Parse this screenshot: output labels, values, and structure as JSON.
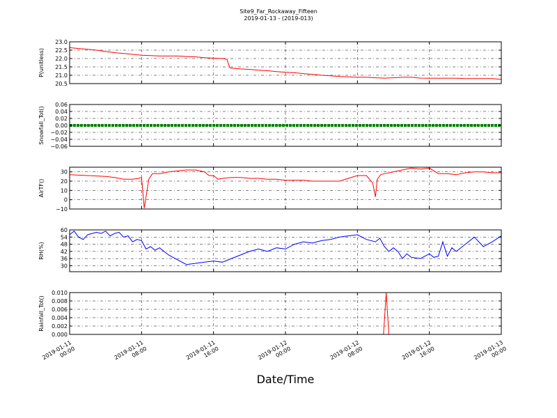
{
  "title": "Site9_Far_Rockaway_Fifteen",
  "subtitle": "2019-01-13 - (2019-013)",
  "xlabel": "Date/Time",
  "x_ticks": [
    {
      "line1": "2019-01-11",
      "line2": "00:00"
    },
    {
      "line1": "2019-01-11",
      "line2": "08:00"
    },
    {
      "line1": "2019-01-11",
      "line2": "16:00"
    },
    {
      "line1": "2019-01-12",
      "line2": "00:00"
    },
    {
      "line1": "2019-01-12",
      "line2": "08:00"
    },
    {
      "line1": "2019-01-12",
      "line2": "16:00"
    },
    {
      "line1": "2019-01-13",
      "line2": "00:00"
    }
  ],
  "x_range_hours": [
    0,
    48
  ],
  "chart_data": [
    {
      "type": "line",
      "ylabel": "P(unitless)",
      "ylim": [
        20.5,
        23.0
      ],
      "yticks": [
        "20.5",
        "21.0",
        "21.5",
        "22.0",
        "22.5",
        "23.0"
      ],
      "tick_values": [
        20.5,
        21.0,
        21.5,
        22.0,
        22.5,
        23.0
      ],
      "grid": true,
      "color": "#ff0000",
      "x_hours": [
        0,
        1,
        2,
        3,
        4,
        5,
        6,
        7,
        8,
        9,
        10,
        11,
        12,
        13,
        14,
        15,
        16,
        17,
        17.5,
        17.8,
        18,
        19,
        20,
        21,
        22,
        23,
        24,
        25,
        26,
        27,
        28,
        29,
        30,
        31,
        32,
        33,
        34,
        35,
        36,
        37,
        38,
        39,
        40,
        41,
        42,
        43,
        44,
        45,
        46,
        47,
        48
      ],
      "values": [
        22.65,
        22.6,
        22.55,
        22.5,
        22.42,
        22.35,
        22.3,
        22.25,
        22.2,
        22.18,
        22.15,
        22.15,
        22.15,
        22.12,
        22.1,
        22.05,
        22.02,
        22.0,
        21.95,
        21.45,
        21.42,
        21.38,
        21.35,
        21.3,
        21.27,
        21.22,
        21.18,
        21.15,
        21.1,
        21.05,
        21.0,
        20.97,
        20.93,
        20.9,
        20.88,
        20.88,
        20.85,
        20.83,
        20.85,
        20.88,
        20.88,
        20.83,
        20.82,
        20.82,
        20.82,
        20.82,
        20.8,
        20.8,
        20.8,
        20.8,
        20.75
      ]
    },
    {
      "type": "line",
      "ylabel": "Snowfall_Tot()",
      "ylim": [
        -0.06,
        0.06
      ],
      "yticks": [
        "−0.06",
        "−0.04",
        "−0.02",
        "0.00",
        "0.02",
        "0.04",
        "0.06"
      ],
      "tick_values": [
        -0.06,
        -0.04,
        -0.02,
        0.0,
        0.02,
        0.04,
        0.06
      ],
      "grid": true,
      "color": "#008000",
      "x_hours": [
        0,
        48
      ],
      "values": [
        0,
        0
      ]
    },
    {
      "type": "line",
      "ylabel": "AirTF()",
      "ylim": [
        -10,
        35
      ],
      "yticks": [
        "−10",
        "0",
        "10",
        "20",
        "30"
      ],
      "tick_values": [
        -10,
        0,
        10,
        20,
        30
      ],
      "grid": true,
      "color": "#ff0000",
      "x_hours": [
        0,
        2,
        4,
        5,
        6,
        7,
        7.7,
        8,
        8.3,
        8.8,
        9.2,
        10,
        11,
        12,
        13,
        14,
        15,
        15.5,
        16,
        16.5,
        17,
        18,
        19,
        20,
        21,
        22,
        23,
        24,
        25,
        26,
        27,
        28,
        29,
        30,
        31,
        32,
        33,
        33.7,
        34,
        34.2,
        34.6,
        35,
        36,
        37,
        38,
        39,
        40,
        41,
        42,
        43,
        44,
        45,
        46,
        47,
        48
      ],
      "values": [
        27,
        26,
        25,
        24,
        22,
        22,
        23,
        24,
        -9,
        22,
        28,
        28,
        30,
        31,
        32,
        32,
        30,
        26,
        26,
        22,
        23,
        24,
        24,
        23,
        23,
        22,
        22,
        21,
        21,
        21,
        20,
        20,
        20,
        20,
        23,
        26,
        26,
        18,
        3,
        22,
        27,
        28,
        30,
        32,
        34,
        33,
        34,
        28,
        28,
        27,
        29,
        30,
        30,
        29,
        29
      ]
    },
    {
      "type": "line",
      "ylabel": "RH(%)",
      "ylim": [
        25,
        60
      ],
      "yticks": [
        "30",
        "36",
        "42",
        "48",
        "54",
        "60"
      ],
      "tick_values": [
        30,
        36,
        42,
        48,
        54,
        60
      ],
      "grid": true,
      "color": "#0000ff",
      "x_hours": [
        0,
        0.5,
        1,
        1.5,
        2,
        3,
        3.5,
        4,
        4.5,
        5,
        5.5,
        6,
        6.5,
        7,
        7.5,
        8,
        8.5,
        9,
        9.5,
        10,
        11,
        12,
        13,
        14,
        15,
        16,
        17,
        18,
        19,
        20,
        21,
        22,
        23,
        24,
        25,
        26,
        27,
        28,
        29,
        30,
        31,
        32,
        32.5,
        33,
        34,
        34.5,
        35,
        35.5,
        36,
        36.5,
        37,
        37.5,
        38,
        39,
        40,
        40.5,
        41,
        41.5,
        42,
        42.5,
        43,
        44,
        45,
        46,
        47,
        48
      ],
      "values": [
        56,
        59,
        54,
        52,
        56,
        58,
        57,
        59,
        55,
        57,
        58,
        54,
        55,
        50,
        52,
        51,
        44,
        46,
        43,
        45,
        39,
        35,
        31,
        32,
        33,
        34,
        33,
        36,
        39,
        42,
        44,
        42,
        45,
        44,
        48,
        50,
        49,
        51,
        52,
        54,
        55,
        56,
        54,
        52,
        50,
        53,
        46,
        42,
        45,
        42,
        36,
        40,
        37,
        36,
        40,
        37,
        38,
        50,
        38,
        45,
        42,
        48,
        54,
        46,
        50,
        55
      ]
    },
    {
      "type": "line",
      "ylabel": "Rainfall_Tot()",
      "ylim": [
        0.0,
        0.01
      ],
      "yticks": [
        "0.000",
        "0.002",
        "0.004",
        "0.006",
        "0.008",
        "0.010"
      ],
      "tick_values": [
        0.0,
        0.002,
        0.004,
        0.006,
        0.008,
        0.01
      ],
      "grid": true,
      "color": "#ff0000",
      "x_hours": [
        0,
        34.9,
        35.2,
        35.5,
        48
      ],
      "values": [
        0,
        0,
        0.01,
        0,
        0
      ]
    }
  ]
}
